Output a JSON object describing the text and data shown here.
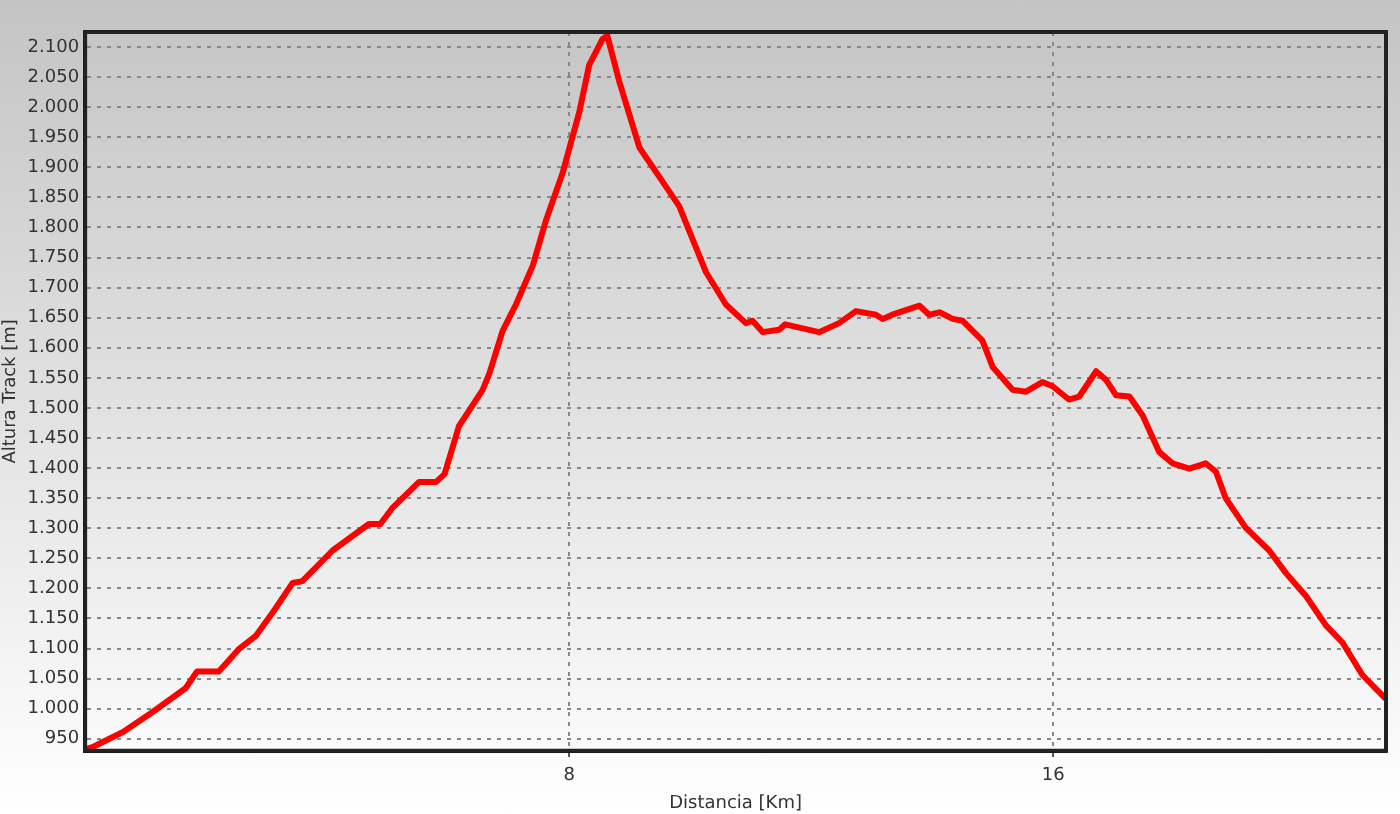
{
  "chart_data": {
    "type": "line",
    "xlabel": "Distancia [Km]",
    "ylabel": "Altura Track [m]",
    "xlim": [
      0,
      21.5
    ],
    "xticks": [
      8,
      16
    ],
    "ylim": [
      930,
      2125
    ],
    "yticks": [
      950,
      {
        "value": 1000,
        "label": "1.000"
      },
      {
        "value": 1050,
        "label": "1.050"
      },
      {
        "value": 1100,
        "label": "1.100"
      },
      {
        "value": 1150,
        "label": "1.150"
      },
      {
        "value": 1200,
        "label": "1.200"
      },
      {
        "value": 1250,
        "label": "1.250"
      },
      {
        "value": 1300,
        "label": "1.300"
      },
      {
        "value": 1350,
        "label": "1.350"
      },
      {
        "value": 1400,
        "label": "1.400"
      },
      {
        "value": 1450,
        "label": "1.450"
      },
      {
        "value": 1500,
        "label": "1.500"
      },
      {
        "value": 1550,
        "label": "1.550"
      },
      {
        "value": 1600,
        "label": "1.600"
      },
      {
        "value": 1650,
        "label": "1.650"
      },
      {
        "value": 1700,
        "label": "1.700"
      },
      {
        "value": 1750,
        "label": "1.750"
      },
      {
        "value": 1800,
        "label": "1.800"
      },
      {
        "value": 1850,
        "label": "1.850"
      },
      {
        "value": 1900,
        "label": "1.900"
      },
      {
        "value": 1950,
        "label": "1.950"
      },
      {
        "value": 2000,
        "label": "2.000"
      },
      {
        "value": 2050,
        "label": "2.050"
      },
      {
        "value": 2100,
        "label": "2.100"
      }
    ],
    "grid": true,
    "legend": false,
    "marker": "none",
    "line_style": "solid",
    "series": [
      {
        "color": "#ff0000",
        "x": [
          0,
          0.12,
          0.4,
          0.62,
          1.11,
          1.66,
          1.85,
          2.21,
          2.55,
          2.82,
          3.1,
          3.43,
          3.59,
          4.09,
          4.69,
          4.88,
          5.08,
          5.52,
          5.8,
          5.94,
          6.18,
          6.57,
          6.68,
          6.9,
          7.12,
          7.4,
          7.62,
          7.89,
          8.17,
          8.33,
          8.55,
          8.63,
          8.83,
          9.16,
          9.6,
          9.82,
          10.26,
          10.59,
          10.92,
          11.03,
          11.2,
          11.47,
          11.57,
          12.13,
          12.46,
          12.74,
          13.07,
          13.18,
          13.34,
          13.79,
          13.95,
          14.12,
          14.34,
          14.5,
          14.83,
          15.0,
          15.33,
          15.55,
          15.82,
          15.99,
          16.26,
          16.43,
          16.71,
          16.87,
          17.04,
          17.26,
          17.48,
          17.75,
          17.97,
          18.25,
          18.52,
          18.69,
          18.85,
          19.18,
          19.57,
          19.85,
          20.18,
          20.51,
          20.78,
          21.11,
          21.48
        ],
        "values": [
          933,
          936,
          950,
          961,
          994,
          1034,
          1062,
          1062,
          1100,
          1121,
          1160,
          1209,
          1212,
          1263,
          1307,
          1307,
          1334,
          1377,
          1377,
          1390,
          1470,
          1530,
          1557,
          1628,
          1672,
          1737,
          1813,
          1890,
          1993,
          2070,
          2113,
          2119,
          2042,
          1933,
          1868,
          1835,
          1726,
          1672,
          1641,
          1645,
          1626,
          1630,
          1639,
          1626,
          1641,
          1661,
          1655,
          1648,
          1655,
          1670,
          1655,
          1659,
          1648,
          1645,
          1612,
          1568,
          1530,
          1527,
          1543,
          1536,
          1514,
          1519,
          1561,
          1547,
          1521,
          1519,
          1487,
          1427,
          1408,
          1399,
          1408,
          1394,
          1350,
          1301,
          1263,
          1225,
          1187,
          1138,
          1110,
          1056,
          1018
        ]
      }
    ]
  }
}
